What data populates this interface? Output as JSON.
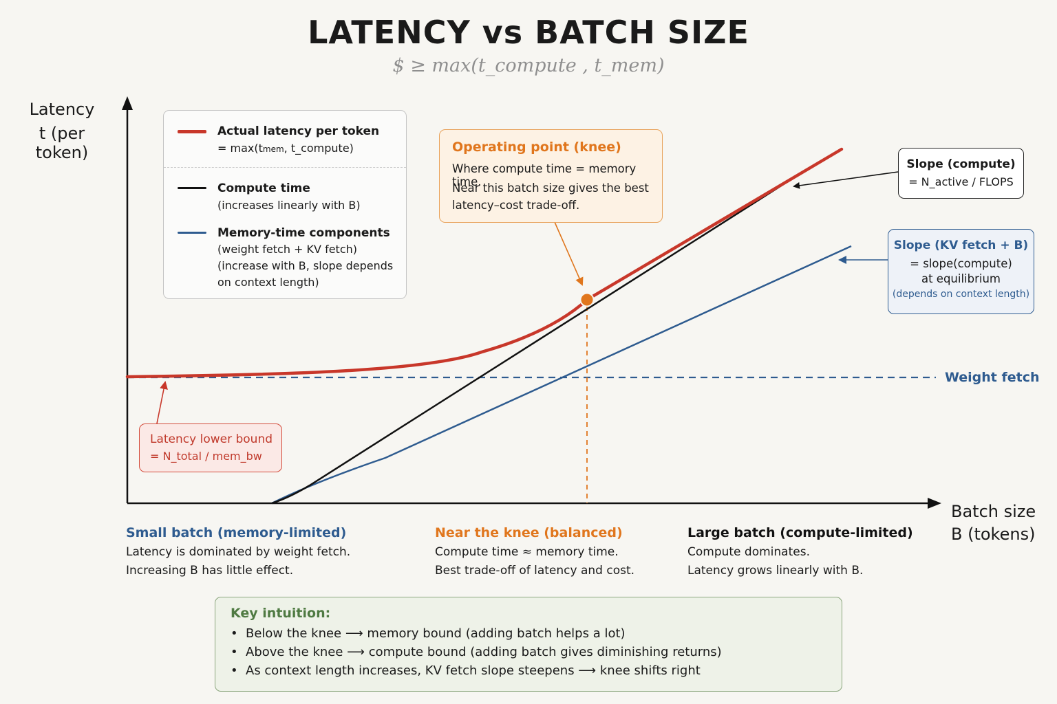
{
  "title": "LATENCY vs BATCH SIZE",
  "subtitle": "$ ≥ max(t_compute ,  t_mem)",
  "axes": {
    "y_line1": "Latency",
    "y_line2": "t (per token)",
    "x_line1": "Batch size",
    "x_line2": "B (tokens)"
  },
  "legend": {
    "actual_title": "Actual latency per token",
    "actual_formula_prefix": "= max(t",
    "actual_formula_sub": "mem",
    "actual_formula_suffix": ", t_compute)",
    "compute_title": "Compute time",
    "compute_desc": "(increases linearly with B)",
    "memory_title": "Memory-time components",
    "memory_desc1": "(weight fetch + KV fetch)",
    "memory_desc2": "(increase with B, slope depends",
    "memory_desc3": "on context length)"
  },
  "knee": {
    "title": "Operating point (knee)",
    "line1": "Where compute time = memory time.",
    "line2": "Near this batch size gives the best",
    "line3": "latency–cost trade-off."
  },
  "slope_compute": {
    "title": "Slope (compute)",
    "formula": "= N_active / FLOPS"
  },
  "slope_kv": {
    "title": "Slope (KV fetch + B)",
    "line1": "= slope(compute)",
    "line2": "at equilibrium",
    "note": "(depends on context length)"
  },
  "weight_fetch_label": "Weight fetch",
  "lower_bound": {
    "title": "Latency lower bound",
    "formula": "= N_total / mem_bw"
  },
  "regions": [
    {
      "title": "Small batch (memory-limited)",
      "line1": "Latency is dominated by weight fetch.",
      "line2": "Increasing B has little effect."
    },
    {
      "title": "Near the knee (balanced)",
      "line1": "Compute time ≈ memory time.",
      "line2": "Best trade-off of latency and cost."
    },
    {
      "title": "Large batch (compute-limited)",
      "line1": "Compute dominates.",
      "line2": "Latency grows linearly with B."
    }
  ],
  "key_intuition": {
    "title": "Key intuition:",
    "bullets": [
      "Below the knee ⟶ memory bound (adding batch helps a lot)",
      "Above the knee ⟶ compute bound (adding batch gives diminishing returns)",
      "As context length increases, KV fetch slope steepens ⟶ knee shifts right"
    ]
  },
  "colors": {
    "actual": "#c8372a",
    "compute": "#111111",
    "memory": "#2e5b8f",
    "knee": "#e0761d",
    "key_green": "#4f7a42"
  }
}
